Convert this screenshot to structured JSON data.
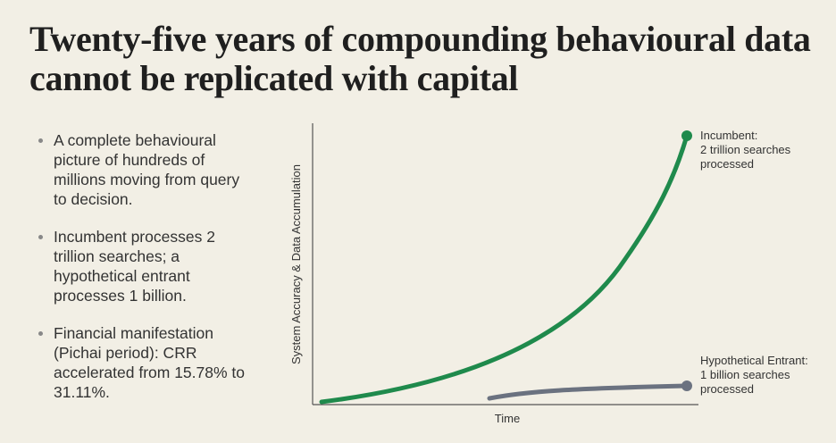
{
  "header": {
    "title": "Twenty-five years of compounding behavioural data cannot be replicated with capital"
  },
  "bullets": [
    "A complete behavioural picture of hundreds of millions moving from query to decision.",
    "Incumbent processes 2 trillion searches; a hypothetical entrant processes 1 billion.",
    "Financial manifestation (Pichai period): CRR accelerated from 15.78% to 31.11%."
  ],
  "diagram": {
    "y_axis_label": "System Accuracy & Data Accumulation",
    "x_axis_label": "Time",
    "incumbent_label": [
      "Incumbent:",
      "2 trillion searches",
      "processed"
    ],
    "entrant_label": [
      "Hypothetical Entrant:",
      "1 billion searches",
      "processed"
    ]
  }
}
